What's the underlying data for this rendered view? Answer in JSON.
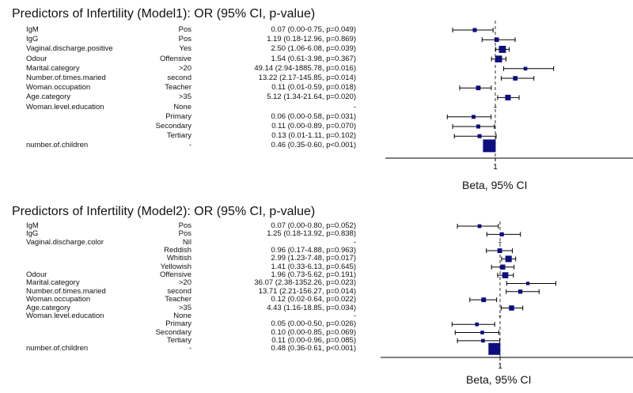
{
  "chart_data": [
    {
      "type": "forest",
      "title": "Predictors of Infertility (Model1): OR (95% CI, p-value)",
      "xlabel": "Beta, 95% CI",
      "reference_line": 1,
      "x_tick_labels": [
        "1"
      ],
      "x_scale": "log",
      "rows": [
        {
          "variable": "IgM",
          "level": "Pos",
          "estimate_text": "0.07 (0.00-0.75, p=0.049)",
          "or": 0.07,
          "lo": 0.004,
          "hi": 0.75
        },
        {
          "variable": "IgG",
          "level": "Pos",
          "estimate_text": "1.19 (0.18-12.96, p=0.869)",
          "or": 1.19,
          "lo": 0.18,
          "hi": 12.96
        },
        {
          "variable": "Vaginal.discharge.positive",
          "level": "Yes",
          "estimate_text": "2.50 (1.06-6.08, p=0.039)",
          "or": 2.5,
          "lo": 1.06,
          "hi": 6.08
        },
        {
          "variable": "Odour",
          "level": "Offensive",
          "estimate_text": "1.54 (0.61-3.98, p=0.367)",
          "or": 1.54,
          "lo": 0.61,
          "hi": 3.98
        },
        {
          "variable": "Marital.category",
          "level": ">20",
          "estimate_text": "49.14 (2.94-1885.78, p=0.016)",
          "or": 49.14,
          "lo": 2.94,
          "hi": 1885.78
        },
        {
          "variable": "Number.of.times.maried",
          "level": "second",
          "estimate_text": "13.22 (2.17-145.85, p=0.014)",
          "or": 13.22,
          "lo": 2.17,
          "hi": 145.85
        },
        {
          "variable": "Woman.occupation",
          "level": "Teacher",
          "estimate_text": "0.11 (0.01-0.59, p=0.018)",
          "or": 0.11,
          "lo": 0.01,
          "hi": 0.59
        },
        {
          "variable": "Age.category",
          "level": ">35",
          "estimate_text": "5.12 (1.34-21.64, p=0.020)",
          "or": 5.12,
          "lo": 1.34,
          "hi": 21.64
        },
        {
          "variable": "Woman.level.education",
          "level": "None",
          "estimate_text": "-",
          "or": null,
          "lo": null,
          "hi": null
        },
        {
          "variable": "",
          "level": "Primary",
          "estimate_text": "0.06 (0.00-0.58, p=0.031)",
          "or": 0.06,
          "lo": 0.002,
          "hi": 0.58
        },
        {
          "variable": "",
          "level": "Secondary",
          "estimate_text": "0.11 (0.00-0.89, p=0.070)",
          "or": 0.11,
          "lo": 0.004,
          "hi": 0.89
        },
        {
          "variable": "",
          "level": "Tertiary",
          "estimate_text": "0.13 (0.01-1.11, p=0.102)",
          "or": 0.13,
          "lo": 0.005,
          "hi": 1.11
        },
        {
          "variable": "number.of.children",
          "level": "-",
          "estimate_text": "0.46 (0.35-0.60, p<0.001)",
          "or": 0.46,
          "lo": 0.35,
          "hi": 0.6
        }
      ]
    },
    {
      "type": "forest",
      "title": "Predictors of Infertility (Model2): OR (95% CI, p-value)",
      "xlabel": "Beta, 95% CI",
      "reference_line": 1,
      "x_tick_labels": [
        "1"
      ],
      "x_scale": "log",
      "rows": [
        {
          "variable": "IgM",
          "level": "Pos",
          "estimate_text": "0.07 (0.00-0.80, p=0.052)",
          "or": 0.07,
          "lo": 0.004,
          "hi": 0.8
        },
        {
          "variable": "IgG",
          "level": "Pos",
          "estimate_text": "1.25 (0.18-13.92, p=0.838)",
          "or": 1.25,
          "lo": 0.18,
          "hi": 13.92
        },
        {
          "variable": "Vaginal.discharge.color",
          "level": "Nil",
          "estimate_text": "-",
          "or": null,
          "lo": null,
          "hi": null
        },
        {
          "variable": "",
          "level": "Reddish",
          "estimate_text": "0.96 (0.17-4.88, p=0.963)",
          "or": 0.96,
          "lo": 0.17,
          "hi": 4.88
        },
        {
          "variable": "",
          "level": "Whitish",
          "estimate_text": "2.99 (1.23-7.48, p=0.017)",
          "or": 2.99,
          "lo": 1.23,
          "hi": 7.48
        },
        {
          "variable": "",
          "level": "Yellowish",
          "estimate_text": "1.41 (0.33-6.13, p=0.645)",
          "or": 1.41,
          "lo": 0.33,
          "hi": 6.13
        },
        {
          "variable": "Odour",
          "level": "Offensive",
          "estimate_text": "1.96 (0.73-5.62, p=0.191)",
          "or": 1.96,
          "lo": 0.73,
          "hi": 5.62
        },
        {
          "variable": "Marital.category",
          "level": ">20",
          "estimate_text": "36.07 (2.38-1352.26, p=0.023)",
          "or": 36.07,
          "lo": 2.38,
          "hi": 1352.26
        },
        {
          "variable": "Number.of.times.maried",
          "level": "second",
          "estimate_text": "13.71 (2.21-156.27, p=0.014)",
          "or": 13.71,
          "lo": 2.21,
          "hi": 156.27
        },
        {
          "variable": "Woman.occupation",
          "level": "Teacher",
          "estimate_text": "0.12 (0.02-0.64, p=0.022)",
          "or": 0.12,
          "lo": 0.02,
          "hi": 0.64
        },
        {
          "variable": "Age.category",
          "level": ">35",
          "estimate_text": "4.43 (1.16-18.85, p=0.034)",
          "or": 4.43,
          "lo": 1.16,
          "hi": 18.85
        },
        {
          "variable": "Woman.level.education",
          "level": "None",
          "estimate_text": "-",
          "or": null,
          "lo": null,
          "hi": null
        },
        {
          "variable": "",
          "level": "Primary",
          "estimate_text": "0.05 (0.00-0.50, p=0.026)",
          "or": 0.05,
          "lo": 0.002,
          "hi": 0.5
        },
        {
          "variable": "",
          "level": "Secondary",
          "estimate_text": "0.10 (0.00-0.85, p=0.069)",
          "or": 0.1,
          "lo": 0.003,
          "hi": 0.85
        },
        {
          "variable": "",
          "level": "Tertiary",
          "estimate_text": "0.11 (0.00-0.96, p=0.085)",
          "or": 0.11,
          "lo": 0.004,
          "hi": 0.96
        },
        {
          "variable": "number.of.children",
          "level": "-",
          "estimate_text": "0.48 (0.36-0.61, p<0.001)",
          "or": 0.48,
          "lo": 0.36,
          "hi": 0.61
        }
      ]
    }
  ],
  "colors": {
    "marker": "#0d0d80",
    "line": "#000000",
    "reference": "#333333"
  }
}
